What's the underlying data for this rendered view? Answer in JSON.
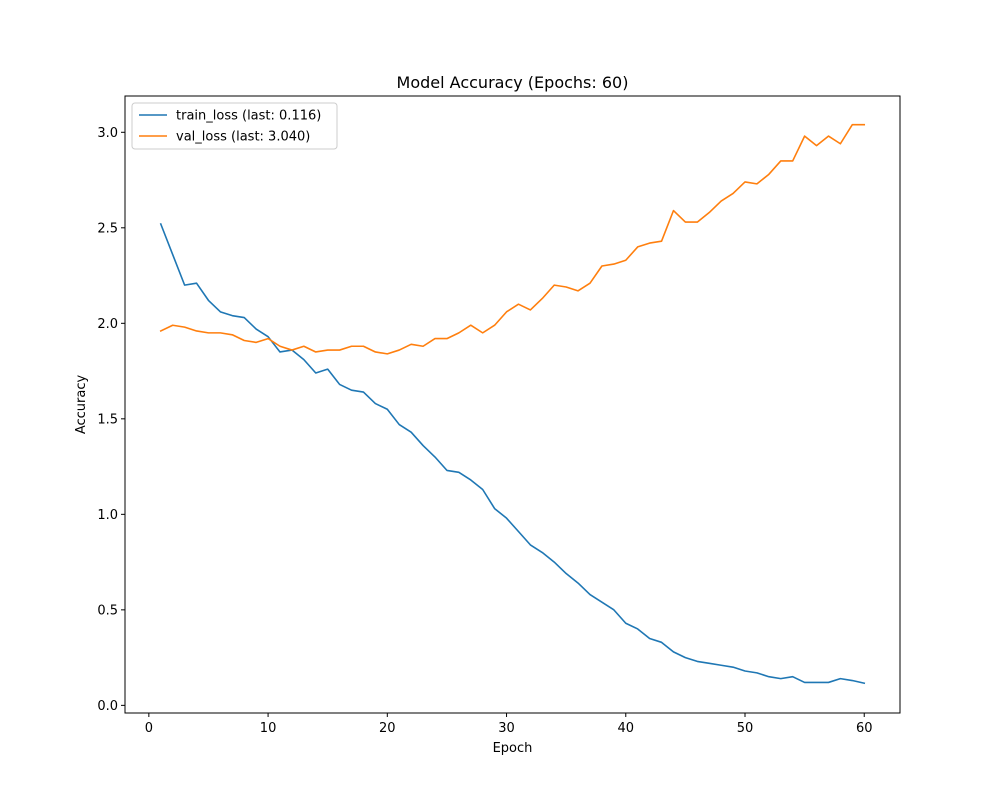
{
  "chart_data": {
    "type": "line",
    "title": "Model Accuracy (Epochs: 60)",
    "xlabel": "Epoch",
    "ylabel": "Accuracy",
    "xlim": [
      -2,
      63
    ],
    "ylim": [
      -0.04,
      3.19
    ],
    "xticks": [
      0,
      10,
      20,
      30,
      40,
      50,
      60
    ],
    "yticks": [
      0.0,
      0.5,
      1.0,
      1.5,
      2.0,
      2.5,
      3.0
    ],
    "xtick_labels": [
      "0",
      "10",
      "20",
      "30",
      "40",
      "50",
      "60"
    ],
    "ytick_labels": [
      "0.0",
      "0.5",
      "1.0",
      "1.5",
      "2.0",
      "2.5",
      "3.0"
    ],
    "grid": false,
    "legend_position": "upper-left",
    "x": [
      1,
      2,
      3,
      4,
      5,
      6,
      7,
      8,
      9,
      10,
      11,
      12,
      13,
      14,
      15,
      16,
      17,
      18,
      19,
      20,
      21,
      22,
      23,
      24,
      25,
      26,
      27,
      28,
      29,
      30,
      31,
      32,
      33,
      34,
      35,
      36,
      37,
      38,
      39,
      40,
      41,
      42,
      43,
      44,
      45,
      46,
      47,
      48,
      49,
      50,
      51,
      52,
      53,
      54,
      55,
      56,
      57,
      58,
      59,
      60
    ],
    "series": [
      {
        "name": "train_loss (last: 0.116)",
        "color": "#1f77b4",
        "values": [
          2.52,
          2.36,
          2.2,
          2.21,
          2.12,
          2.06,
          2.04,
          2.03,
          1.97,
          1.93,
          1.85,
          1.86,
          1.81,
          1.74,
          1.76,
          1.68,
          1.65,
          1.64,
          1.58,
          1.55,
          1.47,
          1.43,
          1.36,
          1.3,
          1.23,
          1.22,
          1.18,
          1.13,
          1.03,
          0.98,
          0.91,
          0.84,
          0.8,
          0.75,
          0.69,
          0.64,
          0.58,
          0.54,
          0.5,
          0.43,
          0.4,
          0.35,
          0.33,
          0.28,
          0.25,
          0.23,
          0.22,
          0.21,
          0.2,
          0.18,
          0.17,
          0.15,
          0.14,
          0.15,
          0.12,
          0.12,
          0.12,
          0.14,
          0.13,
          0.116
        ]
      },
      {
        "name": "val_loss (last: 3.040)",
        "color": "#ff7f0e",
        "values": [
          1.96,
          1.99,
          1.98,
          1.96,
          1.95,
          1.95,
          1.94,
          1.91,
          1.9,
          1.92,
          1.88,
          1.86,
          1.88,
          1.85,
          1.86,
          1.86,
          1.88,
          1.88,
          1.85,
          1.84,
          1.86,
          1.89,
          1.88,
          1.92,
          1.92,
          1.95,
          1.99,
          1.95,
          1.99,
          2.06,
          2.1,
          2.07,
          2.13,
          2.2,
          2.19,
          2.17,
          2.21,
          2.3,
          2.31,
          2.33,
          2.4,
          2.42,
          2.43,
          2.59,
          2.53,
          2.53,
          2.58,
          2.64,
          2.68,
          2.74,
          2.73,
          2.78,
          2.85,
          2.85,
          2.98,
          2.93,
          2.98,
          2.94,
          3.04,
          3.04
        ]
      }
    ]
  }
}
